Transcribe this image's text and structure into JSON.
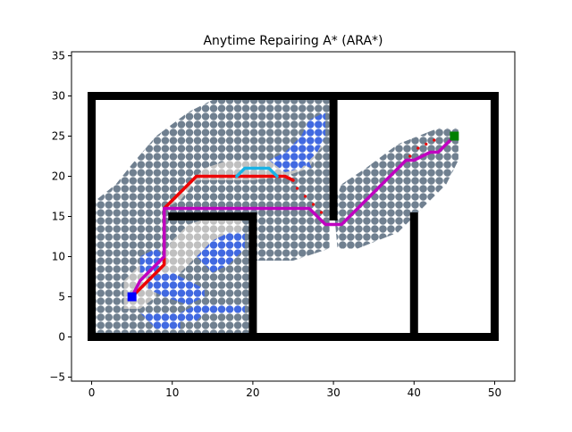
{
  "chart_data": {
    "type": "scatter",
    "title": "Anytime Repairing A* (ARA*)",
    "xlabel": "",
    "ylabel": "",
    "xlim": [
      -2.5,
      52.5
    ],
    "ylim": [
      -5.5,
      35.5
    ],
    "x_ticks": [
      0,
      10,
      20,
      30,
      40,
      50
    ],
    "y_ticks": [
      -5,
      0,
      5,
      10,
      15,
      20,
      25,
      30,
      35
    ],
    "grid": false,
    "legend": "none",
    "colors": {
      "obstacle": "#000000",
      "explored": "#708090",
      "explored_light": "#c0c0c0",
      "explored_blue": "#4169e1",
      "path_initial": "#ee0000",
      "path_middle": "#1ab3e6",
      "path_final": "#c000c0",
      "start": "#0000ff",
      "goal": "#008000"
    },
    "start": [
      5,
      5
    ],
    "goal": [
      45,
      25
    ],
    "obstacles": [
      {
        "name": "bottom-wall",
        "x": [
          0,
          50
        ],
        "y": [
          0,
          0
        ]
      },
      {
        "name": "top-wall",
        "x": [
          0,
          50
        ],
        "y": [
          30,
          30
        ]
      },
      {
        "name": "left-wall",
        "x": [
          0,
          0
        ],
        "y": [
          0,
          30
        ]
      },
      {
        "name": "right-wall",
        "x": [
          50,
          50
        ],
        "y": [
          0,
          30
        ]
      },
      {
        "name": "inner-wall-1",
        "x": [
          30,
          30
        ],
        "y": [
          15,
          30
        ]
      },
      {
        "name": "inner-wall-2",
        "x": [
          20,
          20
        ],
        "y": [
          0,
          15
        ]
      },
      {
        "name": "inner-wall-3",
        "x": [
          10,
          20
        ],
        "y": [
          15,
          15
        ]
      },
      {
        "name": "inner-wall-4",
        "x": [
          40,
          40
        ],
        "y": [
          0,
          15
        ]
      }
    ],
    "explored_regions": [
      {
        "color": "explored",
        "polygon": [
          [
            0.5,
            17
          ],
          [
            3,
            19
          ],
          [
            5,
            21.5
          ],
          [
            8,
            25
          ],
          [
            12,
            28
          ],
          [
            15,
            29.5
          ],
          [
            29.5,
            29.5
          ],
          [
            29.5,
            11
          ],
          [
            25,
            9.5
          ],
          [
            19.5,
            9.5
          ],
          [
            19.5,
            0.5
          ],
          [
            0.5,
            0.5
          ]
        ]
      },
      {
        "color": "explored",
        "polygon": [
          [
            30,
            16.5
          ],
          [
            30.5,
            11
          ],
          [
            33,
            11
          ],
          [
            38,
            13
          ],
          [
            40,
            15
          ],
          [
            44,
            19
          ],
          [
            45.5,
            22
          ],
          [
            45.5,
            26
          ],
          [
            43,
            26
          ],
          [
            38,
            24
          ],
          [
            34,
            21
          ],
          [
            31,
            19
          ]
        ]
      }
    ],
    "light_regions": [
      {
        "polygon": [
          [
            9,
            16
          ],
          [
            11,
            18
          ],
          [
            14,
            21
          ],
          [
            17,
            22
          ],
          [
            22,
            22
          ],
          [
            24,
            22
          ],
          [
            25,
            23
          ],
          [
            26,
            24
          ],
          [
            28,
            25
          ],
          [
            29,
            24
          ],
          [
            28,
            23
          ],
          [
            27,
            21
          ],
          [
            24,
            20
          ],
          [
            20,
            19.5
          ],
          [
            13,
            19.5
          ],
          [
            11,
            17
          ]
        ]
      },
      {
        "polygon": [
          [
            8,
            9
          ],
          [
            10,
            12
          ],
          [
            12,
            14
          ],
          [
            15,
            15
          ],
          [
            18,
            15
          ],
          [
            19,
            14
          ],
          [
            18,
            12
          ],
          [
            16,
            11
          ],
          [
            13,
            10
          ],
          [
            11,
            8
          ],
          [
            9,
            7
          ]
        ]
      },
      {
        "polygon": [
          [
            4,
            3.5
          ],
          [
            6,
            3.5
          ],
          [
            8,
            5
          ],
          [
            8,
            8
          ],
          [
            6,
            9
          ],
          [
            4,
            7
          ]
        ]
      }
    ],
    "blue_regions": [
      {
        "polygon": [
          [
            22,
            22
          ],
          [
            24,
            23
          ],
          [
            26,
            25
          ],
          [
            27,
            27
          ],
          [
            29,
            28
          ],
          [
            29,
            25
          ],
          [
            28,
            23
          ],
          [
            26,
            21
          ],
          [
            24,
            20.5
          ]
        ]
      },
      {
        "polygon": [
          [
            13,
            10
          ],
          [
            15,
            12
          ],
          [
            17,
            13
          ],
          [
            19,
            13
          ],
          [
            19,
            11
          ],
          [
            17,
            9
          ],
          [
            15,
            8
          ]
        ]
      },
      {
        "polygon": [
          [
            6,
            10
          ],
          [
            8,
            11
          ],
          [
            9,
            10
          ],
          [
            8,
            8
          ],
          [
            6,
            8
          ]
        ]
      },
      {
        "polygon": [
          [
            6,
            3
          ],
          [
            11,
            3
          ],
          [
            13,
            4
          ],
          [
            19,
            4
          ],
          [
            19,
            3
          ],
          [
            14,
            3
          ],
          [
            13,
            2
          ],
          [
            11,
            2
          ],
          [
            11,
            1
          ],
          [
            8,
            1
          ],
          [
            7,
            2
          ]
        ]
      },
      {
        "polygon": [
          [
            7,
            7.5
          ],
          [
            10,
            8
          ],
          [
            12,
            7
          ],
          [
            14,
            6
          ],
          [
            14,
            5
          ],
          [
            12,
            4
          ],
          [
            9,
            5
          ],
          [
            7,
            6
          ]
        ]
      },
      {
        "polygon": [
          [
            26,
            21.5
          ],
          [
            27,
            21.8
          ],
          [
            27.3,
            21
          ]
        ]
      }
    ],
    "series": [
      {
        "name": "initial",
        "color": "path_initial",
        "x": [
          5,
          6,
          9,
          9,
          13,
          24,
          25
        ],
        "y": [
          5,
          6,
          9,
          16,
          20,
          20,
          19.5
        ]
      },
      {
        "name": "middle",
        "color": "path_middle",
        "x": [
          18,
          19,
          22,
          23
        ],
        "y": [
          20,
          21,
          21,
          20
        ]
      },
      {
        "name": "final",
        "color": "path_final",
        "x": [
          5,
          6,
          9,
          9,
          10,
          27,
          29,
          31,
          39,
          40,
          42,
          43,
          44,
          45
        ],
        "y": [
          5,
          7,
          10,
          16,
          16,
          16,
          14,
          14,
          22,
          22,
          23,
          23,
          24,
          25
        ]
      },
      {
        "name": "dots",
        "color": "path_initial",
        "x": [
          25.5,
          26.5,
          27.5,
          28.5,
          39.5,
          40.5,
          41.5,
          42.5
        ],
        "y": [
          18.5,
          17.5,
          16.5,
          15.5,
          22.5,
          23.5,
          24,
          24.5
        ]
      }
    ]
  }
}
